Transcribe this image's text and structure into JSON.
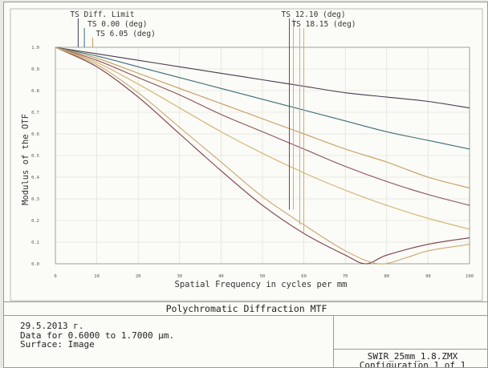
{
  "caption": "Polychromatic Diffraction MTF",
  "info": {
    "date": "29.5.2013 г.",
    "wavelengths": "Data for 0.6000 to 1.7000 µm.",
    "surface": "Surface: Image",
    "file": "SWIR_25mm_1.8.ZMX",
    "configuration": "Configuration 1 of 1"
  },
  "colors": {
    "background": "#fbfbf7",
    "frame": "#9a9a94",
    "diff_limit": "#4a3850",
    "field_0": "#3b6e78",
    "field_6": "#c79a5a",
    "field_12": "#7a3f47",
    "field_18": "#d3b06a"
  },
  "chart_data": {
    "type": "line",
    "title": "Polychromatic Diffraction MTF",
    "xlabel": "Spatial Frequency in cycles per mm",
    "ylabel": "Modulus of the OTF",
    "xlim": [
      0,
      100
    ],
    "ylim": [
      0,
      1
    ],
    "x_ticks": [
      "0",
      "10",
      "20",
      "30",
      "40",
      "50",
      "60",
      "70",
      "80",
      "90",
      "100"
    ],
    "y_ticks": [
      "0.0",
      "0.1",
      "0.2",
      "0.3",
      "0.4",
      "0.5",
      "0.6",
      "0.7",
      "0.8",
      "0.9",
      "1.0"
    ],
    "grid": true,
    "legend": [
      {
        "text": "TS Diff. Limit",
        "x": 5.5
      },
      {
        "text": "TS 0.00 (deg)",
        "x": 7.0
      },
      {
        "text": "TS 6.05 (deg)",
        "x": 9.0
      },
      {
        "text": "TS 12.10 (deg)",
        "x": 56.5
      },
      {
        "text": "TS 18.15 (deg)",
        "x": 59.0
      }
    ],
    "series": [
      {
        "color": "#4a3850",
        "x": [
          0,
          10,
          20,
          30,
          40,
          50,
          60,
          70,
          80,
          90,
          100
        ],
        "y": [
          1.0,
          0.97,
          0.94,
          0.91,
          0.88,
          0.85,
          0.82,
          0.79,
          0.77,
          0.75,
          0.72
        ]
      },
      {
        "color": "#3b6e78",
        "x": [
          0,
          10,
          20,
          30,
          40,
          50,
          60,
          70,
          80,
          90,
          100
        ],
        "y": [
          1.0,
          0.96,
          0.91,
          0.86,
          0.81,
          0.76,
          0.71,
          0.66,
          0.61,
          0.57,
          0.53
        ]
      },
      {
        "color": "#c79a5a",
        "x": [
          0,
          10,
          20,
          30,
          40,
          50,
          60,
          70,
          80,
          90,
          100
        ],
        "y": [
          1.0,
          0.95,
          0.88,
          0.81,
          0.74,
          0.67,
          0.6,
          0.53,
          0.47,
          0.4,
          0.35
        ]
      },
      {
        "color": "#8a5058",
        "x": [
          0,
          10,
          20,
          30,
          40,
          50,
          60,
          70,
          80,
          90,
          100
        ],
        "y": [
          1.0,
          0.94,
          0.86,
          0.78,
          0.69,
          0.61,
          0.53,
          0.45,
          0.38,
          0.32,
          0.27
        ]
      },
      {
        "color": "#d3b06a",
        "x": [
          0,
          10,
          20,
          30,
          40,
          50,
          60,
          70,
          80,
          90,
          100
        ],
        "y": [
          1.0,
          0.93,
          0.83,
          0.72,
          0.61,
          0.51,
          0.42,
          0.34,
          0.27,
          0.21,
          0.16
        ]
      },
      {
        "color": "#7a3f47",
        "x": [
          0,
          10,
          20,
          30,
          40,
          50,
          60,
          70,
          75,
          80,
          90,
          100
        ],
        "y": [
          1.0,
          0.91,
          0.77,
          0.6,
          0.43,
          0.27,
          0.14,
          0.04,
          0.0,
          0.04,
          0.09,
          0.12
        ]
      },
      {
        "color": "#c8a870",
        "x": [
          0,
          10,
          20,
          30,
          40,
          50,
          60,
          70,
          78,
          85,
          90,
          100
        ],
        "y": [
          1.0,
          0.92,
          0.79,
          0.63,
          0.47,
          0.31,
          0.18,
          0.06,
          0.0,
          0.03,
          0.06,
          0.09
        ]
      }
    ]
  }
}
